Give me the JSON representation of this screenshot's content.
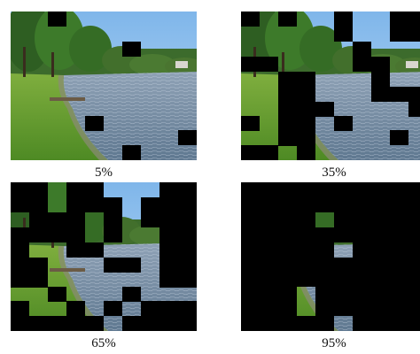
{
  "panels": [
    {
      "caption": "5%"
    },
    {
      "caption": "35%"
    },
    {
      "caption": "65%"
    },
    {
      "caption": "95%"
    }
  ]
}
